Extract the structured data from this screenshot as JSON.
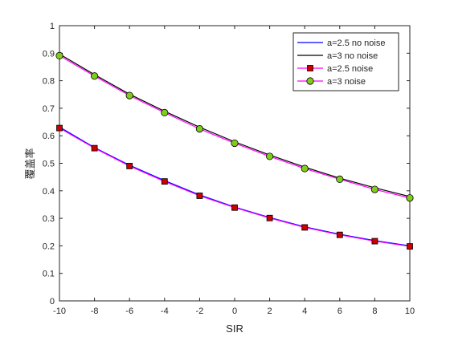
{
  "chart_data": {
    "type": "line",
    "xlabel": "SIR",
    "ylabel": "覆盖率",
    "xlim": [
      -10,
      10
    ],
    "ylim": [
      0,
      1
    ],
    "xticks": [
      "-10",
      "-8",
      "-6",
      "-4",
      "-2",
      "0",
      "2",
      "4",
      "6",
      "8",
      "10"
    ],
    "yticks": [
      "0",
      "0.1",
      "0.2",
      "0.3",
      "0.4",
      "0.5",
      "0.6",
      "0.7",
      "0.8",
      "0.9",
      "1"
    ],
    "grid": false,
    "legend_position": "top-right",
    "x": [
      -10,
      -8,
      -6,
      -4,
      -2,
      0,
      2,
      4,
      6,
      8,
      10
    ],
    "series": [
      {
        "name": "a=2.5 no noise",
        "color": "#0000ff",
        "marker": "none",
        "values": [
          0.632,
          0.557,
          0.493,
          0.437,
          0.385,
          0.341,
          0.303,
          0.269,
          0.242,
          0.219,
          0.2
        ]
      },
      {
        "name": "a=3 no noise",
        "color": "#000000",
        "marker": "none",
        "values": [
          0.897,
          0.822,
          0.751,
          0.689,
          0.631,
          0.578,
          0.53,
          0.486,
          0.446,
          0.411,
          0.379
        ]
      },
      {
        "name": "a=2.5 noise",
        "color": "#ff00ff",
        "marker": "square",
        "marker_color": "#cc0000",
        "values": [
          0.628,
          0.555,
          0.49,
          0.434,
          0.382,
          0.339,
          0.301,
          0.267,
          0.24,
          0.217,
          0.198
        ]
      },
      {
        "name": "a=3 noise",
        "color": "#ff00ff",
        "marker": "circle",
        "marker_color": "#80cc1a",
        "values": [
          0.891,
          0.817,
          0.746,
          0.684,
          0.625,
          0.573,
          0.525,
          0.481,
          0.442,
          0.405,
          0.374
        ]
      }
    ]
  }
}
